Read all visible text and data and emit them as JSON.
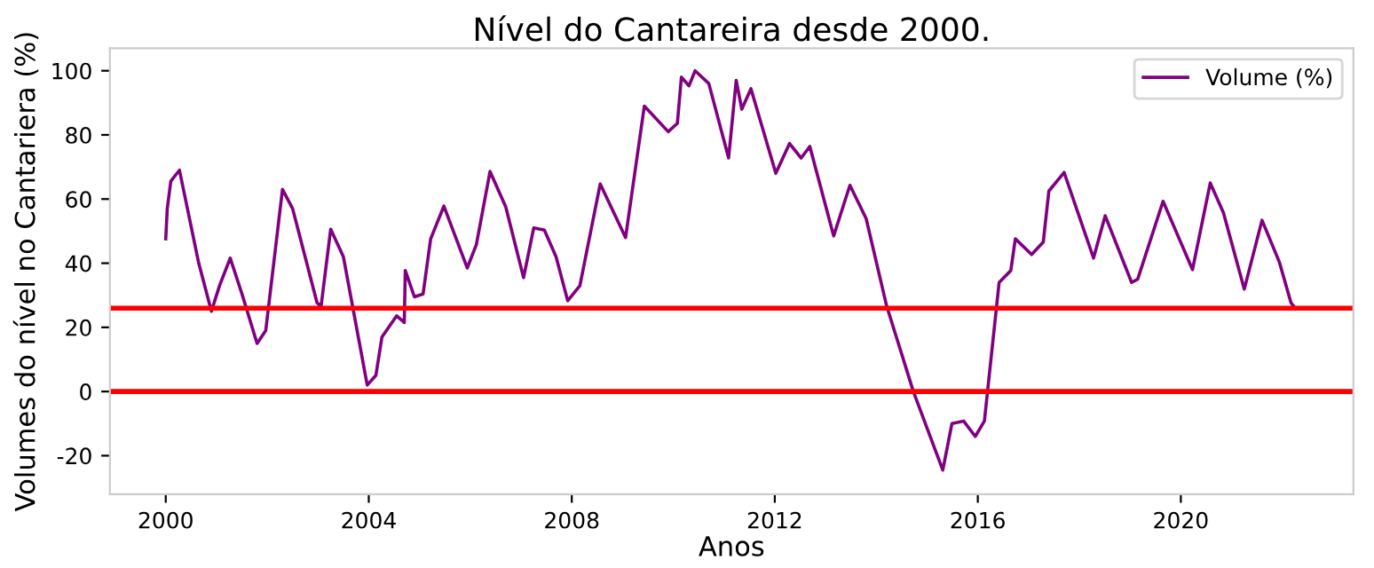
{
  "chart_data": {
    "type": "line",
    "title": "Nível do Cantareira desde 2000.",
    "xlabel": "Anos",
    "ylabel": "Volumes do nível no Cantariera (%)",
    "x": [
      2000.0,
      2000.03,
      2000.1,
      2000.27,
      2000.65,
      2000.9,
      2001.06,
      2001.27,
      2001.5,
      2001.8,
      2001.97,
      2002.3,
      2002.5,
      2002.98,
      2003.06,
      2003.25,
      2003.5,
      2003.97,
      2004.14,
      2004.26,
      2004.55,
      2004.7,
      2004.72,
      2004.9,
      2005.07,
      2005.22,
      2005.48,
      2005.94,
      2006.12,
      2006.39,
      2006.7,
      2007.05,
      2007.25,
      2007.46,
      2007.69,
      2007.92,
      2008.16,
      2008.56,
      2009.06,
      2009.43,
      2009.9,
      2010.08,
      2010.16,
      2010.31,
      2010.43,
      2010.7,
      2011.09,
      2011.24,
      2011.35,
      2011.53,
      2012.02,
      2012.29,
      2012.52,
      2012.69,
      2013.16,
      2013.48,
      2013.8,
      2014.2,
      2014.73,
      2015.31,
      2015.49,
      2015.72,
      2015.95,
      2016.13,
      2016.42,
      2016.65,
      2016.74,
      2017.06,
      2017.29,
      2017.4,
      2017.7,
      2018.28,
      2018.51,
      2019.03,
      2019.15,
      2019.65,
      2020.23,
      2020.58,
      2020.84,
      2021.25,
      2021.6,
      2021.94,
      2022.17,
      2022.23
    ],
    "series": [
      {
        "name": "Volume (%)",
        "color": "#800080",
        "values": [
          47.6,
          57,
          65.6,
          69,
          40,
          25,
          33,
          41.6,
          30.5,
          15,
          19,
          63,
          57,
          27.7,
          26.5,
          50.6,
          42,
          2,
          5,
          17,
          23.6,
          21.5,
          37.7,
          29.5,
          30.4,
          47.6,
          57.8,
          38.5,
          45.8,
          68.6,
          57.5,
          35.5,
          51,
          50.3,
          42,
          28.3,
          33,
          64.7,
          48,
          89,
          81,
          83.6,
          98,
          95.3,
          100,
          96,
          72.8,
          97,
          88,
          94.4,
          68,
          77.3,
          72.8,
          76.4,
          48.5,
          64.3,
          53.9,
          26.9,
          0,
          -24.5,
          -10,
          -9.2,
          -14,
          -9.2,
          34,
          37.7,
          47.6,
          42.7,
          46.6,
          62.5,
          68.3,
          41.6,
          54.8,
          34,
          35,
          59.3,
          38,
          65,
          55.7,
          31.9,
          53.4,
          40.4,
          27.7,
          26.5
        ]
      }
    ],
    "xlim": [
      1998.9,
      2023.4
    ],
    "ylim": [
      -32,
      107
    ],
    "xticks": [
      2000,
      2004,
      2008,
      2012,
      2016,
      2020
    ],
    "yticks": [
      -20,
      0,
      20,
      40,
      60,
      80,
      100
    ],
    "ref_lines": [
      {
        "axis": "y",
        "value": 26,
        "color": "#ff0000"
      },
      {
        "axis": "y",
        "value": 0,
        "color": "#ff0000"
      }
    ],
    "legend": "top right",
    "grid": false
  }
}
